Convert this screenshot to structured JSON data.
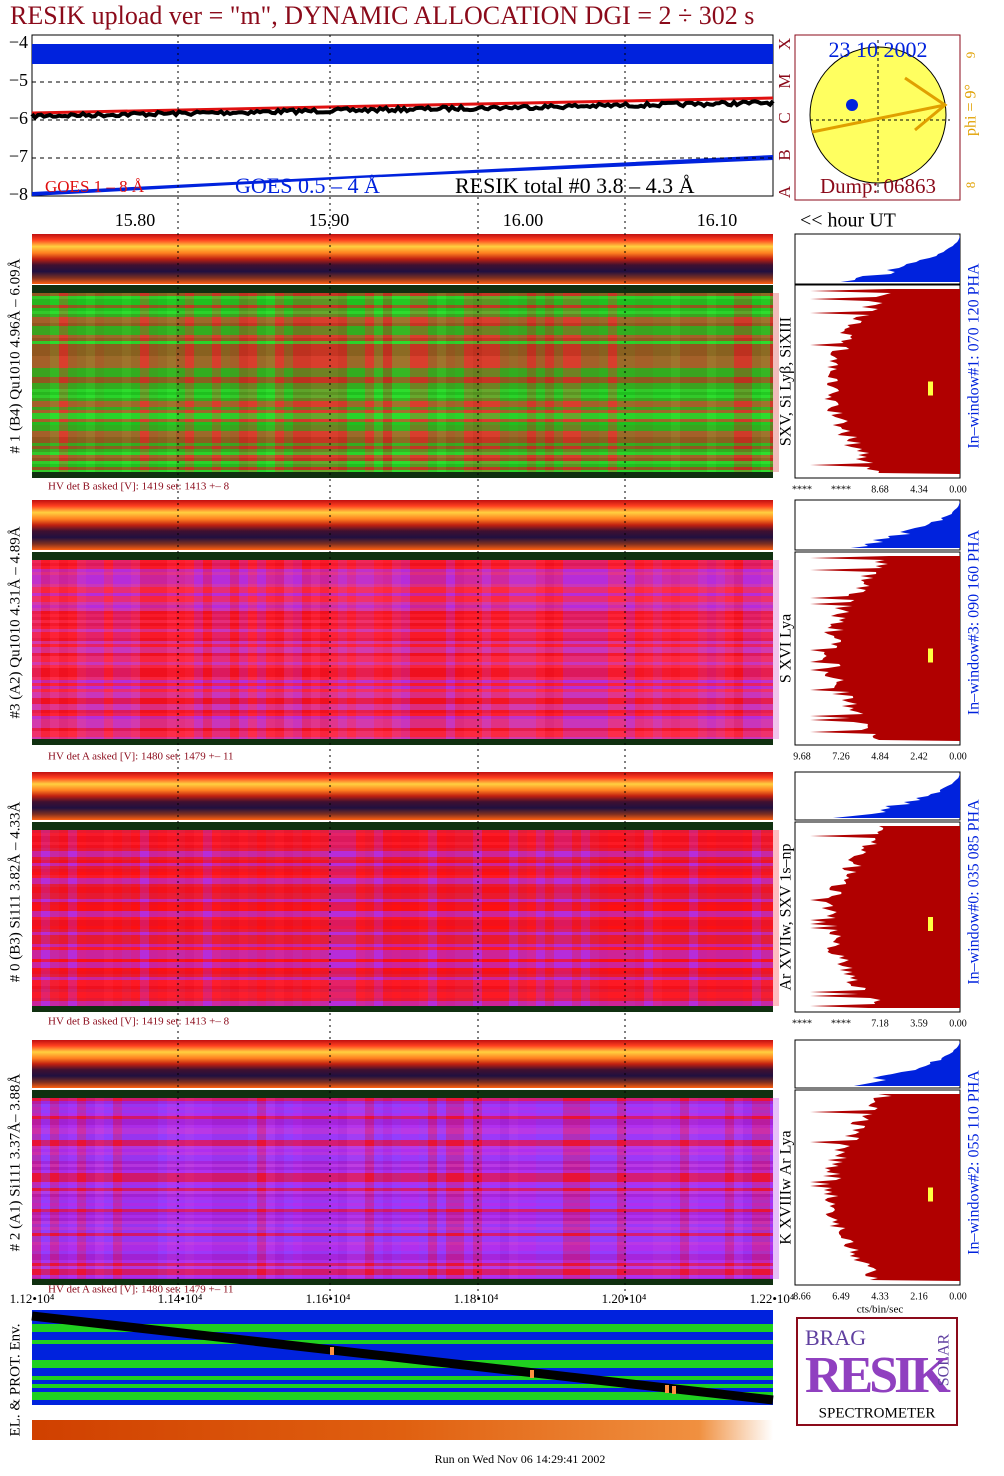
{
  "header": {
    "title": "RESIK upload ver = \"m\", DYNAMIC ALLOCATION  DGI =   2 ÷ 302 s"
  },
  "goes": {
    "yticks": [
      "−4",
      "−5",
      "−6",
      "−7",
      "−8"
    ],
    "legend": [
      "GOES 1 – 8 Å",
      "GOES 0.5 – 4 Å",
      "RESIK total #0  3.8 – 4.3 Å"
    ],
    "classes": [
      "A",
      "B",
      "C",
      "M",
      "X"
    ]
  },
  "orbit": {
    "date": "23 10 2002",
    "dump": "Dump: 06863",
    "phi": "phi =  9°",
    "top_mark": "9",
    "bottom_mark": "8"
  },
  "time_axis": {
    "ticks": [
      "15.80",
      "15.90",
      "16.00",
      "16.10"
    ],
    "unit": "<< hour UT"
  },
  "panels": [
    {
      "label": "# 1 (B4) Qu1010 4.96Å – 6.09Å",
      "hv": "HV det B asked [V]:  1419 set:  1413 +–    8",
      "lines": "SXV, Si Lyβ, SiXIII",
      "window": "In–window#1:  070 120 PHA",
      "hist_ticks": [
        "****",
        "****",
        "8.68",
        "4.34",
        "0.00"
      ]
    },
    {
      "label": "#3 (A2) Qu1010  4.31Å – 4.89Å",
      "hv": "HV det A asked [V]:  1480 set:  1479 +–    11",
      "lines": "S XVI Lya",
      "window": "In–window#3:  090 160 PHA",
      "hist_ticks": [
        "9.68",
        "7.26",
        "4.84",
        "2.42",
        "0.00"
      ]
    },
    {
      "label": "# 0 (B3) Si111  3.82Å – 4.33Å",
      "hv": "HV det B asked [V]:  1419 set:  1413 +–    8",
      "lines": "Ar XVIIw,  SXV 1s–np",
      "window": "In–window#0:  035 085 PHA",
      "hist_ticks": [
        "****",
        "****",
        "7.18",
        "3.59",
        "0.00"
      ]
    },
    {
      "label": "# 2 (A1) Si111  3.37Å– 3.88Å",
      "hv": "HV det A asked [V]:  1480 set:  1479 +–    11",
      "lines": "K XVIIIw  Ar Lya",
      "window": "In–window#2:  055 110 PHA",
      "hist_ticks": [
        "8.66",
        "6.49",
        "4.33",
        "2.16",
        "0.00"
      ]
    }
  ],
  "hist_unit": "cts/bin/sec",
  "bottom_axis": {
    "ticks": [
      "1.12•10⁴",
      "1.14•10⁴",
      "1.16•10⁴",
      "1.18•10⁴",
      "1.20•10⁴",
      "1.22•10⁴"
    ]
  },
  "environment": {
    "label": "EL. & PROT. Env."
  },
  "logo": {
    "top": "BRAG",
    "side": "SOLAR",
    "name": "RESIK",
    "caption": "SPECTROMETER"
  },
  "footer": "Run on Wed Nov 06 14:29:41 2002"
}
